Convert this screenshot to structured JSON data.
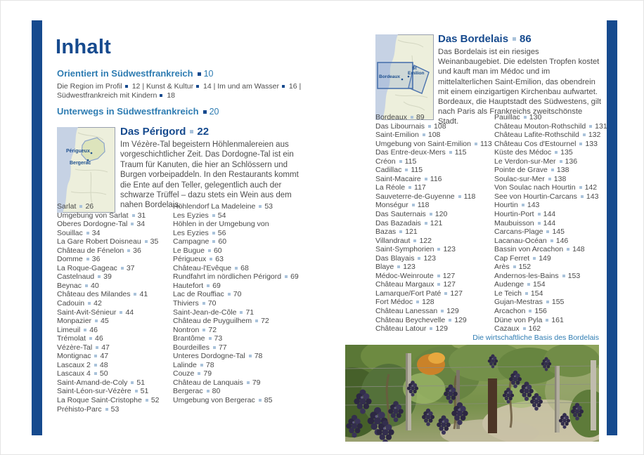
{
  "colors": {
    "navy": "#164a8e",
    "blue": "#2e7cb2",
    "body_text": "#4d4d4d",
    "bullet_light": "#a9c2da",
    "map_sea": "#c6d2e4",
    "map_land": "#edefdc"
  },
  "left_page": {
    "title": "Inhalt",
    "section1": {
      "label": "Orientiert in Südwestfrankreich",
      "page": "10"
    },
    "section1_items": [
      {
        "label": "Die Region im Profil",
        "page": "12"
      },
      {
        "label": "Kunst & Kultur",
        "page": "14"
      },
      {
        "label": "Im und am Wasser",
        "page": "16"
      },
      {
        "label": "Südwest­frankreich mit Kindern",
        "page": "18"
      }
    ],
    "section2": {
      "label": "Unterwegs in Südwestfrankreich",
      "page": "20"
    },
    "perigord": {
      "heading": "Das Périgord",
      "page": "22",
      "description": "Im Vézère-Tal begeistern Höhlenmalereien aus vorgeschichtlicher Zeit. Das Dordogne-Tal ist ein Traum für Kanuten, die hier an Schlössern und Burgen vorbeipaddeln. In den Restaurants kommt die Ente auf den Teller, gelegentlich auch der schwarze Trüffel – dazu stets ein Wein aus dem nahen Bordelais.",
      "map": {
        "label1": "Périgueux",
        "label2": "Bergerac"
      }
    },
    "toc_col1": [
      {
        "t": "Sarlat",
        "p": "26"
      },
      {
        "t": "Umgebung von Sarlat",
        "p": "31"
      },
      {
        "t": "Oberes Dordogne-Tal",
        "p": "34"
      },
      {
        "t": "Souillac",
        "p": "34"
      },
      {
        "t": "La Gare Robert Doisneau",
        "p": "35"
      },
      {
        "t": "Château de Fénelon",
        "p": "36"
      },
      {
        "t": "Domme",
        "p": "36"
      },
      {
        "t": "La Roque-Gageac",
        "p": "37"
      },
      {
        "t": "Castelnaud",
        "p": "39"
      },
      {
        "t": "Beynac",
        "p": "40"
      },
      {
        "t": "Château des Milandes",
        "p": "41"
      },
      {
        "t": "Cadouin",
        "p": "42"
      },
      {
        "t": "Saint-Avit-Sénieur",
        "p": "44"
      },
      {
        "t": "Monpazier",
        "p": "45"
      },
      {
        "t": "Limeuil",
        "p": "46"
      },
      {
        "t": "Trémolat",
        "p": "46"
      },
      {
        "t": "Vézère-Tal",
        "p": "47"
      },
      {
        "t": "Montignac",
        "p": "47"
      },
      {
        "t": "Lascaux 2",
        "p": "48"
      },
      {
        "t": "Lascaux 4",
        "p": "50"
      },
      {
        "t": "Saint-Amand-de-Coly",
        "p": "51"
      },
      {
        "t": "Saint-Léon-sur-Vézère",
        "p": "51"
      },
      {
        "t": "La Roque Saint-Cristophe",
        "p": "52"
      },
      {
        "t": "Préhisto-Parc",
        "p": "53"
      }
    ],
    "toc_col2": [
      {
        "t": "Höhlendorf La Madeleine",
        "p": "53"
      },
      {
        "t": "Les Eyzies",
        "p": "54"
      },
      {
        "t": "Höhlen in der Umgebung von"
      },
      {
        "t": "Les Eyzies",
        "p": "56"
      },
      {
        "t": "Campagne",
        "p": "60"
      },
      {
        "t": "Le Bugue",
        "p": "60"
      },
      {
        "t": "Périgueux",
        "p": "63"
      },
      {
        "t": "Château-l'Evêque",
        "p": "68"
      },
      {
        "t": "Rundfahrt im nördlichen Périgord",
        "p": "69"
      },
      {
        "t": "Hautefort",
        "p": "69"
      },
      {
        "t": "Lac de Rouffiac",
        "p": "70"
      },
      {
        "t": "Thiviers",
        "p": "70"
      },
      {
        "t": "Saint-Jean-de-Côle",
        "p": "71"
      },
      {
        "t": "Château de Puyguilhem",
        "p": "72"
      },
      {
        "t": "Nontron",
        "p": "72"
      },
      {
        "t": "Brantôme",
        "p": "73"
      },
      {
        "t": "Bourdeilles",
        "p": "77"
      },
      {
        "t": "Unteres Dordogne-Tal",
        "p": "78"
      },
      {
        "t": "Lalinde",
        "p": "78"
      },
      {
        "t": "Couze",
        "p": "79"
      },
      {
        "t": "Château de Lanquais",
        "p": "79"
      },
      {
        "t": "Bergerac",
        "p": "80"
      },
      {
        "t": "Umgebung von Bergerac",
        "p": "85"
      }
    ]
  },
  "right_page": {
    "bordelais": {
      "heading": "Das Bordelais",
      "page": "86",
      "description": "Das Bordelais ist ein riesiges Weinanbaugebiet. Die edelsten Tropfen kostet und kauft man im Médoc und im mittelalterlichen Saint-Emilion, das obendrein mit einem einzigartigen Kirchen­bau aufwartet. Bordeaux, die Hauptstadt des Südwestens, gilt nach Paris als Frankreichs zweitschönste Stadt.",
      "map": {
        "label1": "Bordeaux",
        "label2a": "St",
        "label2b": "Emilion"
      }
    },
    "toc_col1": [
      {
        "t": "Bordeaux",
        "p": "89"
      },
      {
        "t": "Das Libournais",
        "p": "108"
      },
      {
        "t": "Saint-Emilion",
        "p": "108"
      },
      {
        "t": "Umgebung von Saint-Emilion",
        "p": "113"
      },
      {
        "t": "Das Entre-deux-Mers",
        "p": "115"
      },
      {
        "t": "Créon",
        "p": "115"
      },
      {
        "t": "Cadillac",
        "p": "115"
      },
      {
        "t": "Saint-Macaire",
        "p": "116"
      },
      {
        "t": "La Réole",
        "p": "117"
      },
      {
        "t": "Sauveterre-de-Guyenne",
        "p": "118"
      },
      {
        "t": "Monségur",
        "p": "118"
      },
      {
        "t": "Das Sauternais",
        "p": "120"
      },
      {
        "t": "Das Bazadais",
        "p": "121"
      },
      {
        "t": "Bazas",
        "p": "121"
      },
      {
        "t": "Villandraut",
        "p": "122"
      },
      {
        "t": "Saint-Symphorien",
        "p": "123"
      },
      {
        "t": "Das Blayais",
        "p": "123"
      },
      {
        "t": "Blaye",
        "p": "123"
      },
      {
        "t": "Médoc-Weinroute",
        "p": "127"
      },
      {
        "t": "Château Margaux",
        "p": "127"
      },
      {
        "t": "Lamarque/Fort Paté",
        "p": "127"
      },
      {
        "t": "Fort Médoc",
        "p": "128"
      },
      {
        "t": "Château Lanessan",
        "p": "129"
      },
      {
        "t": "Château Beychevelle",
        "p": "129"
      },
      {
        "t": "Château Latour",
        "p": "129"
      }
    ],
    "toc_col2": [
      {
        "t": "Pauillac",
        "p": "130"
      },
      {
        "t": "Château Mouton-Rothschild",
        "p": "131"
      },
      {
        "t": "Château Lafite-Rothschild",
        "p": "132"
      },
      {
        "t": "Château Cos d'Estournel",
        "p": "133"
      },
      {
        "t": "Küste des Médoc",
        "p": "135"
      },
      {
        "t": "Le Verdon-sur-Mer",
        "p": "136"
      },
      {
        "t": "Pointe de Grave",
        "p": "138"
      },
      {
        "t": "Soulac-sur-Mer",
        "p": "138"
      },
      {
        "t": "Von Soulac nach Hourtin",
        "p": "142"
      },
      {
        "t": "See von Hourtin-Carcans",
        "p": "143"
      },
      {
        "t": "Hourtin",
        "p": "143"
      },
      {
        "t": "Hourtin-Port",
        "p": "144"
      },
      {
        "t": "Maubuisson",
        "p": "144"
      },
      {
        "t": "Carcans-Plage",
        "p": "145"
      },
      {
        "t": "Lacanau-Océan",
        "p": "146"
      },
      {
        "t": "Bassin von Arcachon",
        "p": "148"
      },
      {
        "t": "Cap Ferret",
        "p": "149"
      },
      {
        "t": "Arès",
        "p": "152"
      },
      {
        "t": "Andernos-les-Bains",
        "p": "153"
      },
      {
        "t": "Audenge",
        "p": "154"
      },
      {
        "t": "Le Teich",
        "p": "154"
      },
      {
        "t": "Gujan-Mestras",
        "p": "155"
      },
      {
        "t": "Arcachon",
        "p": "156"
      },
      {
        "t": "Düne von Pyla",
        "p": "161"
      },
      {
        "t": "Cazaux",
        "p": "162"
      }
    ],
    "photo_caption": "Die wirtschaftliche Basis des Bordelais"
  }
}
